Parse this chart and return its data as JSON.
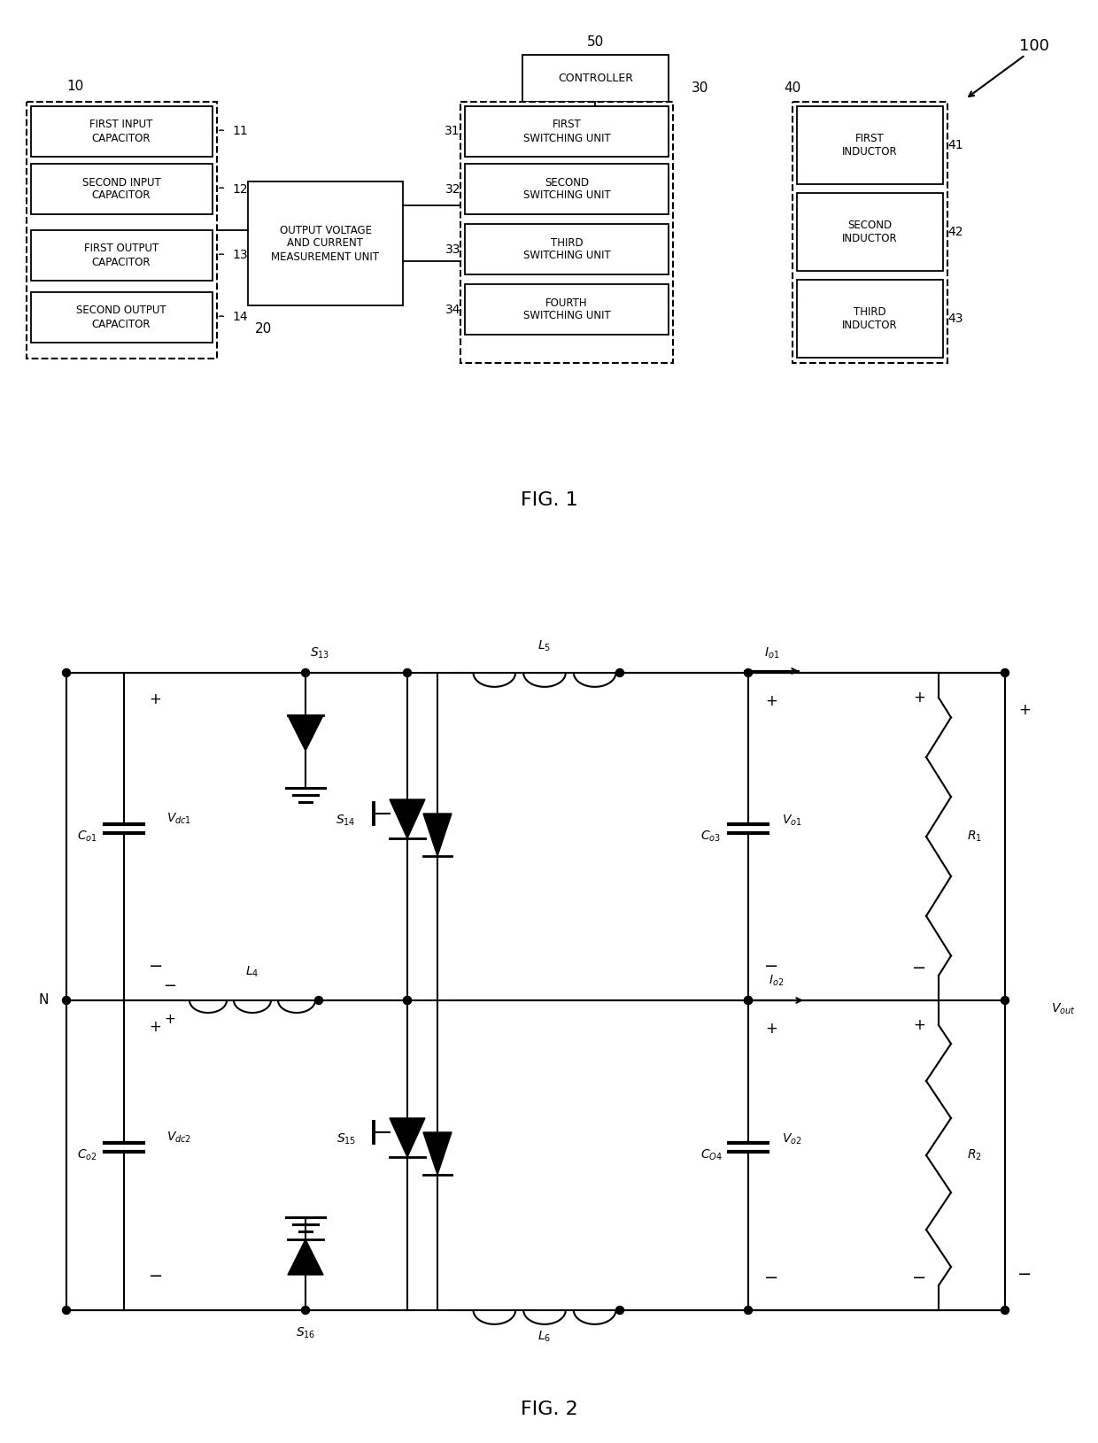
{
  "fig_width": 12.4,
  "fig_height": 16.3,
  "dpi": 100,
  "bg_color": "#ffffff",
  "line_color": "#000000",
  "fig1": {
    "title": "FIG. 1",
    "label_100": "100",
    "label_50": "50",
    "label_10": "10",
    "label_20": "20",
    "label_30": "30",
    "label_40": "40",
    "box_10_labels": [
      "FIRST INPUT\nCAPACITOR",
      "SECOND INPUT\nCAPACITOR",
      "FIRST OUTPUT\nCAPACITOR",
      "SECOND OUTPUT\nCAPACITOR"
    ],
    "box_10_sublabels": [
      "11",
      "12",
      "13",
      "14"
    ],
    "box_20_label": "OUTPUT VOLTAGE\nAND CURRENT\nMEASUREMENT UNIT",
    "box_30_labels": [
      "FIRST\nSWITCHING UNIT",
      "SECOND\nSWITCHING UNIT",
      "THIRD\nSWITCHING UNIT",
      "FOURTH\nSWITCHING UNIT"
    ],
    "box_30_sublabels": [
      "31",
      "32",
      "33",
      "34"
    ],
    "box_40_labels": [
      "FIRST\nINDUCTOR",
      "SECOND\nINDUCTOR",
      "THIRD\nINDUCTOR"
    ],
    "box_40_sublabels": [
      "41",
      "42",
      "43"
    ],
    "box_50_label": "CONTROLLER"
  },
  "fig2": {
    "title": "FIG. 2"
  }
}
